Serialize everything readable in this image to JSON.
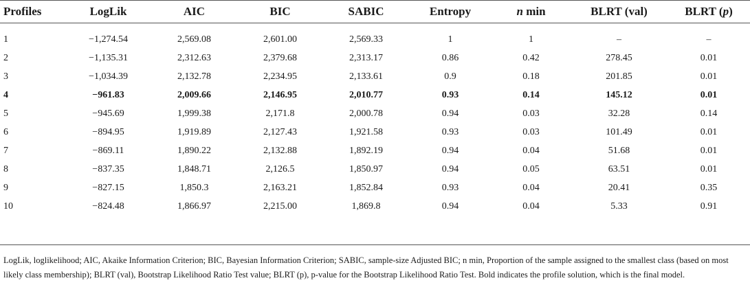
{
  "table": {
    "headers": [
      "Profiles",
      "LogLik",
      "AIC",
      "BIC",
      "SABIC",
      "Entropy",
      "n min",
      "BLRT (val)",
      "BLRT (p)"
    ],
    "header_italic_n": "n",
    "header_nmin_rest": " min",
    "header_blrtp_prefix": "BLRT (",
    "header_blrtp_italic": "p",
    "header_blrtp_suffix": ")",
    "rows": [
      [
        "1",
        "−1,274.54",
        "2,569.08",
        "2,601.00",
        "2,569.33",
        "1",
        "1",
        "–",
        "–"
      ],
      [
        "2",
        "−1,135.31",
        "2,312.63",
        "2,379.68",
        "2,313.17",
        "0.86",
        "0.42",
        "278.45",
        "0.01"
      ],
      [
        "3",
        "−1,034.39",
        "2,132.78",
        "2,234.95",
        "2,133.61",
        "0.9",
        "0.18",
        "201.85",
        "0.01"
      ],
      [
        "4",
        "−961.83",
        "2,009.66",
        "2,146.95",
        "2,010.77",
        "0.93",
        "0.14",
        "145.12",
        "0.01"
      ],
      [
        "5",
        "−945.69",
        "1,999.38",
        "2,171.8",
        "2,000.78",
        "0.94",
        "0.03",
        "32.28",
        "0.14"
      ],
      [
        "6",
        "−894.95",
        "1,919.89",
        "2,127.43",
        "1,921.58",
        "0.93",
        "0.03",
        "101.49",
        "0.01"
      ],
      [
        "7",
        "−869.11",
        "1,890.22",
        "2,132.88",
        "1,892.19",
        "0.94",
        "0.04",
        "51.68",
        "0.01"
      ],
      [
        "8",
        "−837.35",
        "1,848.71",
        "2,126.5",
        "1,850.97",
        "0.94",
        "0.05",
        "63.51",
        "0.01"
      ],
      [
        "9",
        "−827.15",
        "1,850.3",
        "2,163.21",
        "1,852.84",
        "0.93",
        "0.04",
        "20.41",
        "0.35"
      ],
      [
        "10",
        "−824.48",
        "1,866.97",
        "2,215.00",
        "1,869.8",
        "0.94",
        "0.04",
        "5.33",
        "0.91"
      ]
    ]
  },
  "footnote": "LogLik, loglikelihood; AIC, Akaike Information Criterion; BIC, Bayesian Information Criterion; SABIC, sample-size Adjusted BIC; n min, Proportion of the sample assigned to the smallest class (based on most likely class membership); BLRT (val), Bootstrap Likelihood Ratio Test value; BLRT (p), p-value for the Bootstrap Likelihood Ratio Test. Bold indicates the profile solution, which is the final model."
}
